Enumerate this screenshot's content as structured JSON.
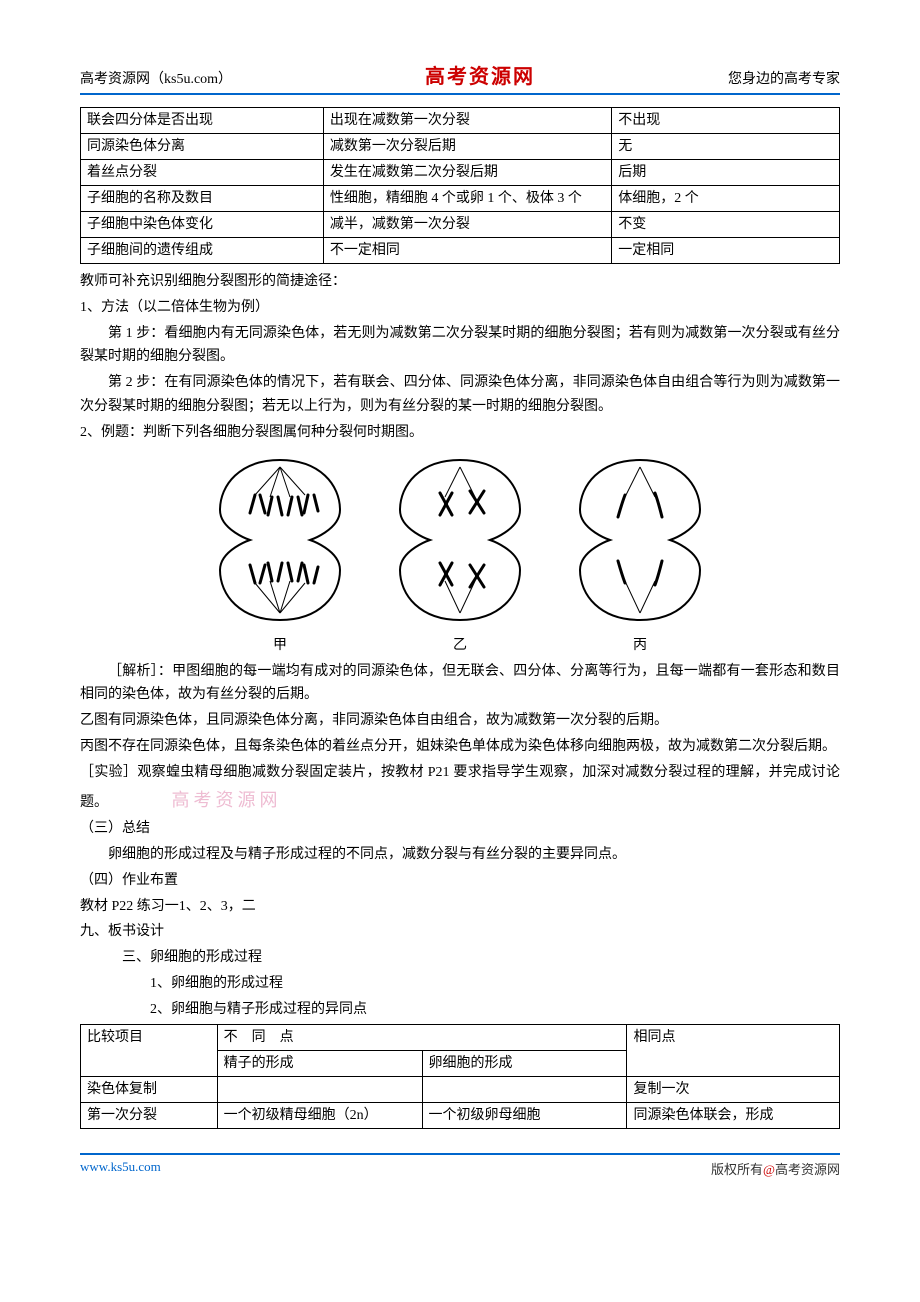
{
  "header": {
    "left": "高考资源网（ks5u.com）",
    "center": "高考资源网",
    "right": "您身边的高考专家"
  },
  "table1": {
    "col_widths": [
      "32%",
      "38%",
      "30%"
    ],
    "rows": [
      [
        "联会四分体是否出现",
        "出现在减数第一次分裂",
        "不出现"
      ],
      [
        "同源染色体分离",
        "减数第一次分裂后期",
        "无"
      ],
      [
        "着丝点分裂",
        "发生在减数第二次分裂后期",
        "后期"
      ],
      [
        "子细胞的名称及数目",
        "性细胞，精细胞 4 个或卵 1 个、极体 3 个",
        "体细胞，2 个"
      ],
      [
        "子细胞中染色体变化",
        "减半，减数第一次分裂",
        "不变"
      ],
      [
        "子细胞间的遗传组成",
        "不一定相同",
        "一定相同"
      ]
    ]
  },
  "para": {
    "teacher_note": "教师可补充识别细胞分裂图形的简捷途径：",
    "method_title": "1、方法（以二倍体生物为例）",
    "step1": "第 1 步：看细胞内有无同源染色体，若无则为减数第二次分裂某时期的细胞分裂图；若有则为减数第一次分裂或有丝分裂某时期的细胞分裂图。",
    "step2": "第 2 步：在有同源染色体的情况下，若有联会、四分体、同源染色体分离，非同源染色体自由组合等行为则为减数第一次分裂某时期的细胞分裂图；若无以上行为，则为有丝分裂的某一时期的细胞分裂图。",
    "example_title": "2、例题：判断下列各细胞分裂图属何种分裂何时期图。",
    "diagram_labels": {
      "a": "甲",
      "b": "乙",
      "c": "丙"
    },
    "analysis_label": "［解析］：",
    "analysis1": "甲图细胞的每一端均有成对的同源染色体，但无联会、四分体、分离等行为，且每一端都有一套形态和数目相同的染色体，故为有丝分裂的后期。",
    "analysis2": "乙图有同源染色体，且同源染色体分离，非同源染色体自由组合，故为减数第一次分裂的后期。",
    "analysis3": "丙图不存在同源染色体，且每条染色体的着丝点分开，姐妹染色单体成为染色体移向细胞两极，故为减数第二次分裂后期。",
    "experiment_label": "［实验］",
    "experiment": "观察蝗虫精母细胞减数分裂固定装片，按教材 P21 要求指导学生观察，加深对减数分裂过程的理解，并完成讨论题。",
    "watermark": "高考资源网",
    "summary_title": "（三）总结",
    "summary": "卵细胞的形成过程及与精子形成过程的不同点，减数分裂与有丝分裂的主要异同点。",
    "homework_title": "（四）作业布置",
    "homework": "教材 P22 练习一1、2、3，二",
    "board_title": "九、板书设计",
    "board_l1": "三、卵细胞的形成过程",
    "board_l2": "1、卵细胞的形成过程",
    "board_l3": "2、卵细胞与精子形成过程的异同点"
  },
  "table2": {
    "col_widths": [
      "18%",
      "27%",
      "27%",
      "28%"
    ],
    "header": {
      "c1": "比较项目",
      "c2": "不　同　点",
      "c3": "相同点",
      "sub1": "精子的形成",
      "sub2": "卵细胞的形成"
    },
    "rows": [
      [
        "染色体复制",
        "",
        "",
        "复制一次"
      ],
      [
        "第一次分裂",
        "一个初级精母细胞（2n）",
        "一个初级卵母细胞",
        "同源染色体联会，形成"
      ]
    ]
  },
  "footer": {
    "left": "www.ks5u.com",
    "right_prefix": "版权所有",
    "right_at": "@",
    "right_suffix": "高考资源网"
  },
  "colors": {
    "rule": "#0066cc",
    "brand": "#cc0000",
    "watermark": "#e8a0c0",
    "link": "#0066cc",
    "text": "#000000",
    "bg": "#ffffff"
  }
}
